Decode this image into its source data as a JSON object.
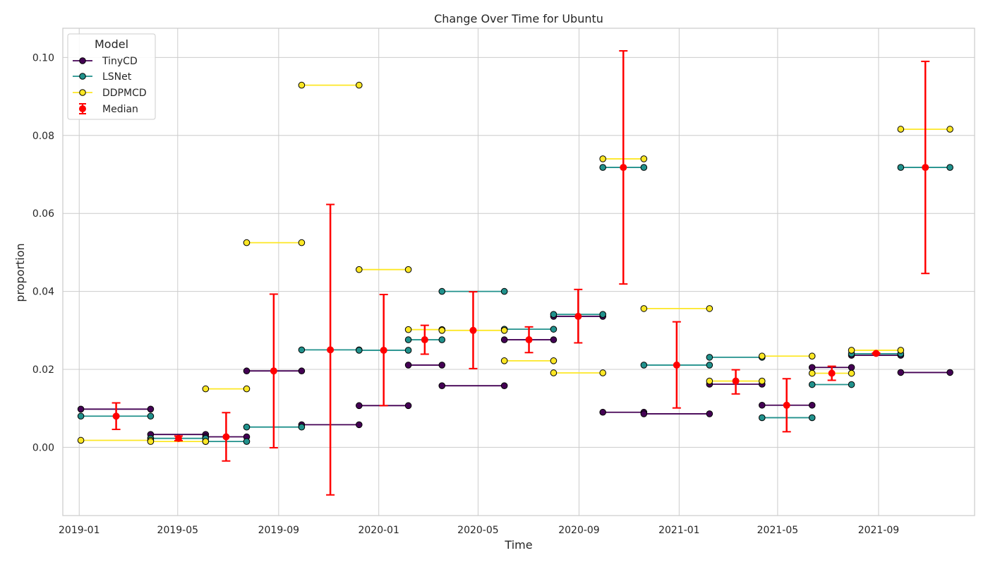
{
  "chart_data": {
    "type": "line",
    "title": "Change Over Time for Ubuntu",
    "xlabel": "Time",
    "ylabel": "proportion",
    "xlim": [
      "2018-12-12",
      "2021-12-27"
    ],
    "ylim": [
      -0.0175,
      0.1075
    ],
    "x_ticks": [
      "2019-01",
      "2019-05",
      "2019-09",
      "2020-01",
      "2020-05",
      "2020-09",
      "2021-01",
      "2021-05",
      "2021-09"
    ],
    "y_ticks": [
      "0.00",
      "0.02",
      "0.04",
      "0.06",
      "0.08",
      "0.10"
    ],
    "grid": true,
    "legend": {
      "title": "Model",
      "position": "upper-left",
      "entries": [
        "TinyCD",
        "LSNet",
        "DDPMCD",
        "Median"
      ]
    },
    "series": [
      {
        "name": "TinyCD",
        "color": "#440154",
        "segments": [
          [
            [
              "2019-01-03",
              0.0098
            ],
            [
              "2019-03-29",
              0.0098
            ]
          ],
          [
            [
              "2019-03-29",
              0.0033
            ],
            [
              "2019-06-04",
              0.0033
            ]
          ],
          [
            [
              "2019-06-04",
              0.0027
            ],
            [
              "2019-07-24",
              0.0027
            ]
          ],
          [
            [
              "2019-07-24",
              0.0196
            ],
            [
              "2019-09-29",
              0.0196
            ]
          ],
          [
            [
              "2019-09-29",
              0.0058
            ],
            [
              "2019-12-08",
              0.0058
            ]
          ],
          [
            [
              "2019-12-08",
              0.0107
            ],
            [
              "2020-02-06",
              0.0107
            ]
          ],
          [
            [
              "2020-02-06",
              0.0211
            ],
            [
              "2020-03-18",
              0.0211
            ]
          ],
          [
            [
              "2020-03-18",
              0.0158
            ],
            [
              "2020-06-02",
              0.0158
            ]
          ],
          [
            [
              "2020-06-02",
              0.0276
            ],
            [
              "2020-08-01",
              0.0276
            ]
          ],
          [
            [
              "2020-08-01",
              0.0336
            ],
            [
              "2020-09-30",
              0.0336
            ]
          ],
          [
            [
              "2020-09-30",
              0.009
            ],
            [
              "2020-11-19",
              0.009
            ]
          ],
          [
            [
              "2020-11-19",
              0.0086
            ],
            [
              "2021-02-07",
              0.0086
            ]
          ],
          [
            [
              "2021-02-07",
              0.0162
            ],
            [
              "2021-04-12",
              0.0162
            ]
          ],
          [
            [
              "2021-04-12",
              0.0108
            ],
            [
              "2021-06-12",
              0.0108
            ]
          ],
          [
            [
              "2021-06-12",
              0.0205
            ],
            [
              "2021-07-30",
              0.0205
            ]
          ],
          [
            [
              "2021-07-30",
              0.0236
            ],
            [
              "2021-09-28",
              0.0236
            ]
          ],
          [
            [
              "2021-09-28",
              0.0192
            ],
            [
              "2021-11-27",
              0.0192
            ]
          ]
        ]
      },
      {
        "name": "LSNet",
        "color": "#21918c",
        "segments": [
          [
            [
              "2019-01-03",
              0.008
            ],
            [
              "2019-03-29",
              0.008
            ]
          ],
          [
            [
              "2019-03-29",
              0.0023
            ],
            [
              "2019-06-04",
              0.0023
            ]
          ],
          [
            [
              "2019-06-04",
              0.0015
            ],
            [
              "2019-07-24",
              0.0015
            ]
          ],
          [
            [
              "2019-07-24",
              0.0052
            ],
            [
              "2019-09-29",
              0.0052
            ]
          ],
          [
            [
              "2019-09-29",
              0.025
            ],
            [
              "2019-12-08",
              0.025
            ]
          ],
          [
            [
              "2019-12-08",
              0.0249
            ],
            [
              "2020-02-06",
              0.0249
            ]
          ],
          [
            [
              "2020-02-06",
              0.0276
            ],
            [
              "2020-03-18",
              0.0276
            ]
          ],
          [
            [
              "2020-03-18",
              0.04
            ],
            [
              "2020-06-02",
              0.04
            ]
          ],
          [
            [
              "2020-06-02",
              0.0303
            ],
            [
              "2020-08-01",
              0.0303
            ]
          ],
          [
            [
              "2020-08-01",
              0.0341
            ],
            [
              "2020-09-30",
              0.0341
            ]
          ],
          [
            [
              "2020-09-30",
              0.0718
            ],
            [
              "2020-11-19",
              0.0718
            ]
          ],
          [
            [
              "2020-11-19",
              0.0211
            ],
            [
              "2021-02-07",
              0.0211
            ]
          ],
          [
            [
              "2021-02-07",
              0.0231
            ],
            [
              "2021-04-12",
              0.0231
            ]
          ],
          [
            [
              "2021-04-12",
              0.0076
            ],
            [
              "2021-06-12",
              0.0076
            ]
          ],
          [
            [
              "2021-06-12",
              0.0161
            ],
            [
              "2021-07-30",
              0.0161
            ]
          ],
          [
            [
              "2021-07-30",
              0.024
            ],
            [
              "2021-09-28",
              0.024
            ]
          ],
          [
            [
              "2021-09-28",
              0.0718
            ],
            [
              "2021-11-27",
              0.0718
            ]
          ]
        ]
      },
      {
        "name": "DDPMCD",
        "color": "#fde725",
        "segments": [
          [
            [
              "2019-01-03",
              0.0018
            ],
            [
              "2019-03-29",
              0.0018
            ]
          ],
          [
            [
              "2019-03-29",
              0.0015
            ],
            [
              "2019-06-04",
              0.0015
            ]
          ],
          [
            [
              "2019-06-04",
              0.015
            ],
            [
              "2019-07-24",
              0.015
            ]
          ],
          [
            [
              "2019-07-24",
              0.0525
            ],
            [
              "2019-09-29",
              0.0525
            ]
          ],
          [
            [
              "2019-09-29",
              0.0929
            ],
            [
              "2019-12-08",
              0.0929
            ]
          ],
          [
            [
              "2019-12-08",
              0.0456
            ],
            [
              "2020-02-06",
              0.0456
            ]
          ],
          [
            [
              "2020-02-06",
              0.0302
            ],
            [
              "2020-03-18",
              0.0302
            ]
          ],
          [
            [
              "2020-03-18",
              0.03
            ],
            [
              "2020-06-02",
              0.03
            ]
          ],
          [
            [
              "2020-06-02",
              0.0222
            ],
            [
              "2020-08-01",
              0.0222
            ]
          ],
          [
            [
              "2020-08-01",
              0.0191
            ],
            [
              "2020-09-30",
              0.0191
            ]
          ],
          [
            [
              "2020-09-30",
              0.074
            ],
            [
              "2020-11-19",
              0.074
            ]
          ],
          [
            [
              "2020-11-19",
              0.0356
            ],
            [
              "2021-02-07",
              0.0356
            ]
          ],
          [
            [
              "2021-02-07",
              0.017
            ],
            [
              "2021-04-12",
              0.017
            ]
          ],
          [
            [
              "2021-04-12",
              0.0234
            ],
            [
              "2021-06-12",
              0.0234
            ]
          ],
          [
            [
              "2021-06-12",
              0.019
            ],
            [
              "2021-07-30",
              0.019
            ]
          ],
          [
            [
              "2021-07-30",
              0.0249
            ],
            [
              "2021-09-28",
              0.0249
            ]
          ],
          [
            [
              "2021-09-28",
              0.0816
            ],
            [
              "2021-11-27",
              0.0816
            ]
          ]
        ]
      }
    ],
    "median": {
      "name": "Median",
      "color": "#ff0000",
      "points": [
        {
          "x": "2019-02-15",
          "y": 0.008,
          "low": 0.0046,
          "high": 0.0114
        },
        {
          "x": "2019-05-02",
          "y": 0.0023,
          "low": 0.0017,
          "high": 0.0029
        },
        {
          "x": "2019-06-29",
          "y": 0.0027,
          "low": -0.0035,
          "high": 0.0089
        },
        {
          "x": "2019-08-26",
          "y": 0.0196,
          "low": -0.0001,
          "high": 0.0393
        },
        {
          "x": "2019-11-03",
          "y": 0.025,
          "low": -0.0122,
          "high": 0.0623
        },
        {
          "x": "2020-01-07",
          "y": 0.0249,
          "low": 0.0107,
          "high": 0.0392
        },
        {
          "x": "2020-02-26",
          "y": 0.0276,
          "low": 0.0239,
          "high": 0.0313
        },
        {
          "x": "2020-04-25",
          "y": 0.03,
          "low": 0.0202,
          "high": 0.0399
        },
        {
          "x": "2020-07-02",
          "y": 0.0276,
          "low": 0.0243,
          "high": 0.0309
        },
        {
          "x": "2020-08-31",
          "y": 0.0336,
          "low": 0.0268,
          "high": 0.0405
        },
        {
          "x": "2020-10-25",
          "y": 0.0718,
          "low": 0.0419,
          "high": 0.1017
        },
        {
          "x": "2020-12-29",
          "y": 0.0211,
          "low": 0.0101,
          "high": 0.0322
        },
        {
          "x": "2021-03-11",
          "y": 0.017,
          "low": 0.0137,
          "high": 0.0199
        },
        {
          "x": "2021-05-12",
          "y": 0.0108,
          "low": 0.004,
          "high": 0.0176
        },
        {
          "x": "2021-07-06",
          "y": 0.019,
          "low": 0.0172,
          "high": 0.0208
        },
        {
          "x": "2021-08-29",
          "y": 0.0241,
          "low": 0.024,
          "high": 0.0242
        },
        {
          "x": "2021-10-28",
          "y": 0.0718,
          "low": 0.0446,
          "high": 0.099
        }
      ]
    }
  }
}
